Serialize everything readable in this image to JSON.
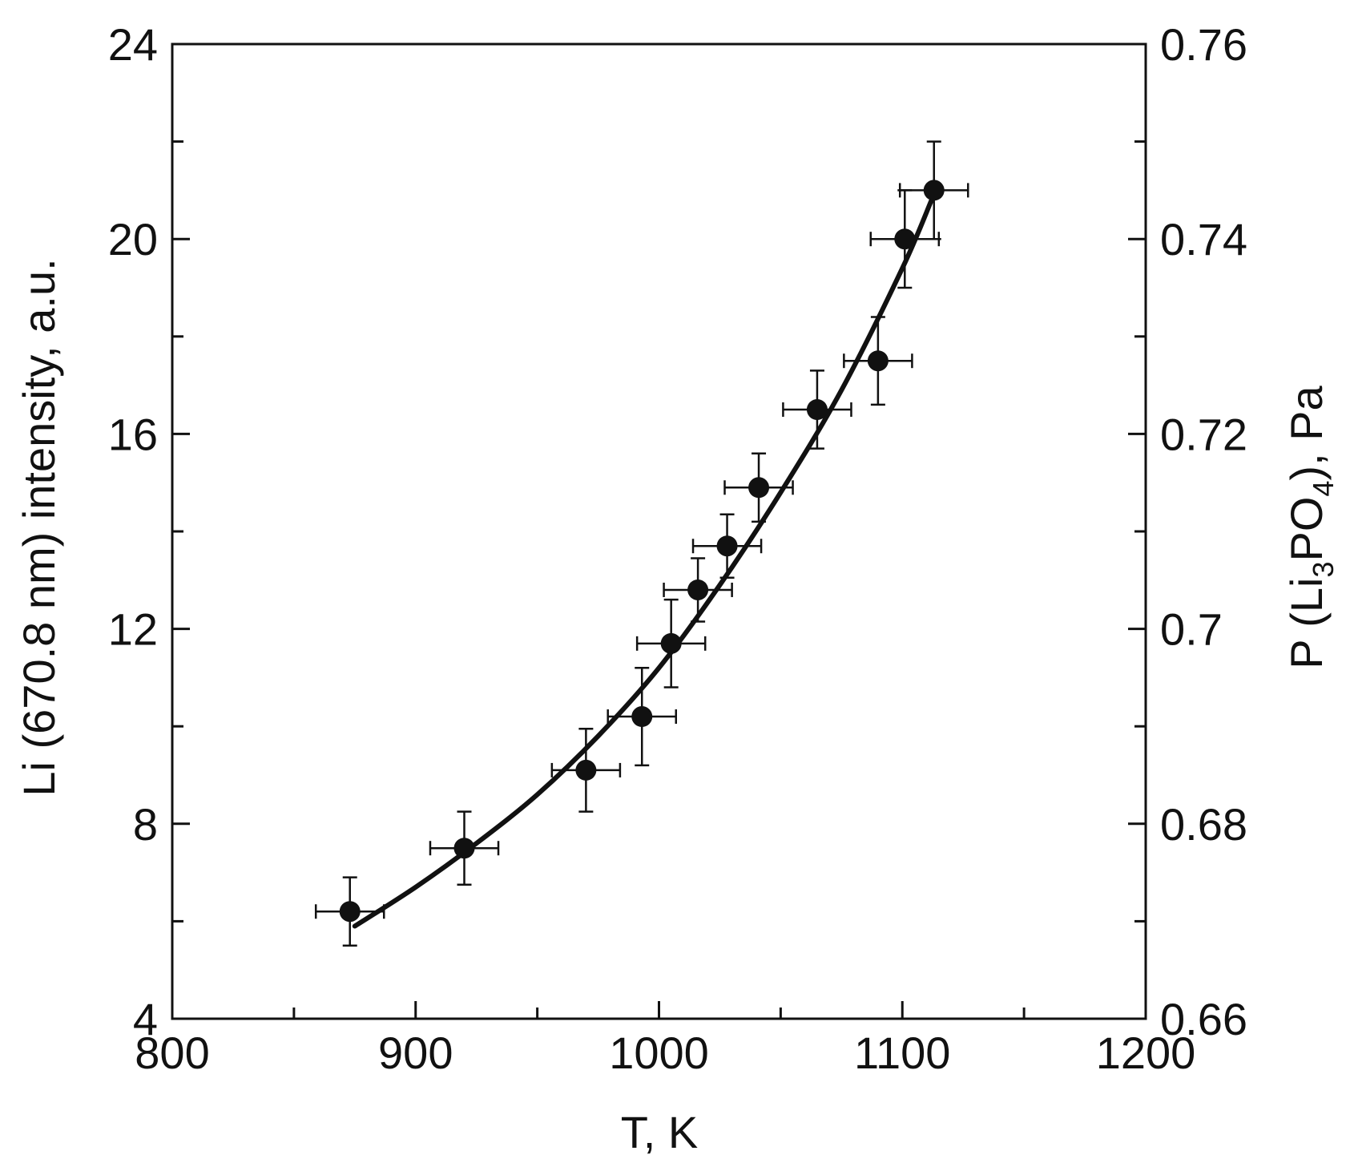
{
  "chart_data": {
    "type": "scatter",
    "title": "",
    "xlabel": "T, K",
    "ylabel": "Li (670.8 nm) intensity, a.u.",
    "y2label": {
      "prefix": "P (Li",
      "sub1": "3",
      "mid": "PO",
      "sub2": "4",
      "suffix": "), Pa"
    },
    "xlim": [
      800,
      1200
    ],
    "ylim": [
      4,
      24
    ],
    "y2lim": [
      0.66,
      0.76
    ],
    "xticks": [
      800,
      900,
      1000,
      1100,
      1200
    ],
    "xtick_labels": [
      "800",
      "900",
      "1000",
      "1100",
      "1200"
    ],
    "xminor_ticks": [
      850,
      950,
      1050,
      1150
    ],
    "yticks": [
      4,
      8,
      12,
      16,
      20,
      24
    ],
    "ytick_labels": [
      "4",
      "8",
      "12",
      "16",
      "20",
      "24"
    ],
    "yminor_ticks": [
      6,
      10,
      14,
      18,
      22
    ],
    "y2ticks": [
      0.66,
      0.68,
      0.7,
      0.72,
      0.74,
      0.76
    ],
    "y2tick_labels": [
      "0.66",
      "0.68",
      "0.7",
      "0.72",
      "0.74",
      "0.76"
    ],
    "y2minor_ticks": [
      0.67,
      0.69,
      0.71,
      0.73,
      0.75
    ],
    "grid": false,
    "series": [
      {
        "type": "scatter",
        "x": [
          873,
          920,
          970,
          993,
          1005,
          1016,
          1028,
          1041,
          1065,
          1090,
          1101,
          1113
        ],
        "y": [
          6.2,
          7.5,
          9.1,
          10.2,
          11.7,
          12.8,
          13.7,
          14.9,
          16.5,
          17.5,
          20.0,
          21.0
        ],
        "xerr": [
          14,
          14,
          14,
          14,
          14,
          14,
          14,
          14,
          14,
          14,
          14,
          14
        ],
        "yerr": [
          0.7,
          0.75,
          0.85,
          1.0,
          0.9,
          0.65,
          0.65,
          0.7,
          0.8,
          0.9,
          1.0,
          1.0
        ]
      },
      {
        "type": "line",
        "x": [
          875,
          900,
          925,
          950,
          975,
          1000,
          1025,
          1050,
          1075,
          1100,
          1112
        ],
        "y": [
          5.9,
          6.7,
          7.6,
          8.6,
          9.8,
          11.2,
          12.9,
          14.8,
          16.9,
          19.4,
          20.8
        ]
      }
    ]
  }
}
